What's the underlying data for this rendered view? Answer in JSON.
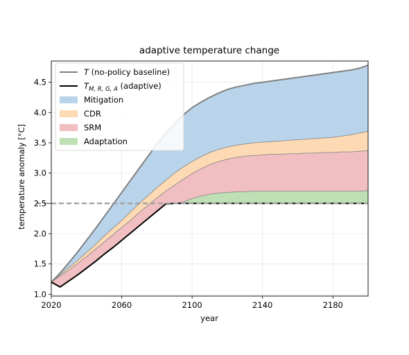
{
  "chart_data": {
    "type": "area",
    "title": "adaptive temperature change",
    "xlabel": "year",
    "ylabel": "temperature anomaly [°C]",
    "xlim": [
      2020,
      2200
    ],
    "ylim": [
      0.97,
      4.85
    ],
    "xticks": [
      2020,
      2060,
      2100,
      2140,
      2180
    ],
    "yticks": [
      1.0,
      1.5,
      2.0,
      2.5,
      3.0,
      3.5,
      4.0,
      4.5
    ],
    "grid": true,
    "legend_position": "top-left",
    "x": [
      2020,
      2025,
      2030,
      2035,
      2040,
      2045,
      2050,
      2055,
      2060,
      2065,
      2070,
      2075,
      2080,
      2085,
      2090,
      2095,
      2100,
      2105,
      2110,
      2115,
      2120,
      2125,
      2130,
      2135,
      2140,
      2145,
      2150,
      2155,
      2160,
      2165,
      2170,
      2175,
      2180,
      2185,
      2190,
      2195,
      2200
    ],
    "series": [
      {
        "name": "T (no-policy baseline)",
        "kind": "line",
        "color": "#808080",
        "values": [
          1.2,
          1.35,
          1.52,
          1.7,
          1.89,
          2.08,
          2.28,
          2.48,
          2.68,
          2.88,
          3.08,
          3.28,
          3.48,
          3.66,
          3.82,
          3.96,
          4.08,
          4.17,
          4.25,
          4.32,
          4.38,
          4.42,
          4.45,
          4.48,
          4.5,
          4.52,
          4.54,
          4.56,
          4.58,
          4.6,
          4.62,
          4.64,
          4.66,
          4.68,
          4.7,
          4.73,
          4.78
        ]
      },
      {
        "name": "T_{M,R,G,A} (adaptive)",
        "kind": "line",
        "color": "#000000",
        "values": [
          1.2,
          1.12,
          1.22,
          1.32,
          1.43,
          1.54,
          1.66,
          1.77,
          1.89,
          2.01,
          2.13,
          2.25,
          2.37,
          2.49,
          2.5,
          2.5,
          2.5,
          2.5,
          2.5,
          2.5,
          2.5,
          2.5,
          2.5,
          2.5,
          2.5,
          2.5,
          2.5,
          2.5,
          2.5,
          2.5,
          2.5,
          2.5,
          2.5,
          2.5,
          2.5,
          2.5,
          2.5
        ]
      },
      {
        "name": "Mitigation",
        "kind": "band-top",
        "color": "#b9d4ea",
        "values": [
          1.2,
          1.35,
          1.52,
          1.7,
          1.89,
          2.08,
          2.28,
          2.48,
          2.68,
          2.88,
          3.08,
          3.28,
          3.48,
          3.66,
          3.82,
          3.96,
          4.08,
          4.17,
          4.25,
          4.32,
          4.38,
          4.42,
          4.45,
          4.48,
          4.5,
          4.52,
          4.54,
          4.56,
          4.58,
          4.6,
          4.62,
          4.64,
          4.66,
          4.68,
          4.7,
          4.73,
          4.78
        ]
      },
      {
        "name": "CDR",
        "kind": "band-top",
        "color": "#fdd9b4",
        "values": [
          1.2,
          1.32,
          1.44,
          1.56,
          1.69,
          1.82,
          1.96,
          2.09,
          2.22,
          2.36,
          2.5,
          2.63,
          2.76,
          2.88,
          3.0,
          3.1,
          3.19,
          3.27,
          3.34,
          3.39,
          3.43,
          3.46,
          3.48,
          3.5,
          3.51,
          3.52,
          3.53,
          3.54,
          3.55,
          3.56,
          3.57,
          3.58,
          3.59,
          3.61,
          3.63,
          3.66,
          3.69
        ]
      },
      {
        "name": "SRM",
        "kind": "band-top",
        "color": "#f1bec1",
        "values": [
          1.2,
          1.3,
          1.4,
          1.51,
          1.62,
          1.74,
          1.86,
          1.98,
          2.1,
          2.22,
          2.35,
          2.47,
          2.59,
          2.7,
          2.8,
          2.9,
          2.99,
          3.07,
          3.14,
          3.19,
          3.23,
          3.26,
          3.28,
          3.29,
          3.3,
          3.31,
          3.31,
          3.32,
          3.32,
          3.33,
          3.33,
          3.34,
          3.34,
          3.35,
          3.35,
          3.36,
          3.37
        ]
      },
      {
        "name": "Adaptation",
        "kind": "band-top",
        "color": "#bfe0b5",
        "values": [
          1.2,
          1.12,
          1.22,
          1.32,
          1.43,
          1.54,
          1.66,
          1.77,
          1.89,
          2.01,
          2.13,
          2.25,
          2.37,
          2.49,
          2.5,
          2.52,
          2.58,
          2.62,
          2.65,
          2.67,
          2.68,
          2.69,
          2.69,
          2.7,
          2.7,
          2.7,
          2.7,
          2.7,
          2.7,
          2.7,
          2.7,
          2.7,
          2.7,
          2.7,
          2.7,
          2.7,
          2.71
        ]
      }
    ],
    "reference_line": {
      "y": 2.5,
      "style": "dashed",
      "color": "#a0a0a0"
    },
    "legend": [
      {
        "label_main": "T",
        "label_sub": "",
        "label_rest": " (no-policy baseline)",
        "kind": "line",
        "color": "#808080"
      },
      {
        "label_main": "T",
        "label_sub": "M, R, G, A",
        "label_rest": " (adaptive)",
        "kind": "line",
        "color": "#000000"
      },
      {
        "label_main": "Mitigation",
        "label_sub": "",
        "label_rest": "",
        "kind": "patch",
        "color": "#b9d4ea"
      },
      {
        "label_main": "CDR",
        "label_sub": "",
        "label_rest": "",
        "kind": "patch",
        "color": "#fdd9b4"
      },
      {
        "label_main": "SRM",
        "label_sub": "",
        "label_rest": "",
        "kind": "patch",
        "color": "#f1bec1"
      },
      {
        "label_main": "Adaptation",
        "label_sub": "",
        "label_rest": "",
        "kind": "patch",
        "color": "#bfe0b5"
      }
    ]
  }
}
